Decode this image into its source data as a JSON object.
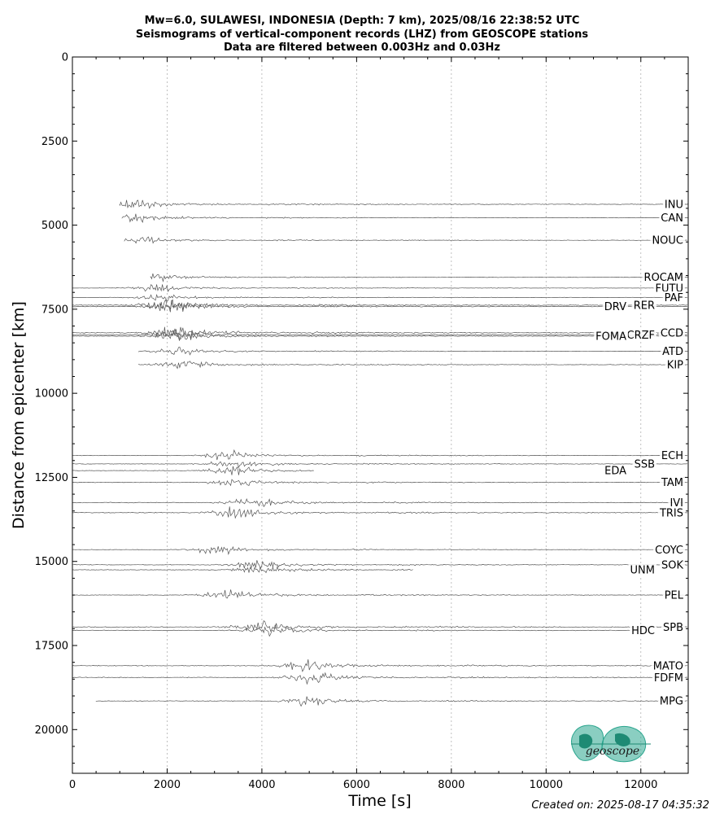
{
  "title": {
    "line1": "Mw=6.0, SULAWESI, INDONESIA (Depth: 7 km), 2025/08/16 22:38:52 UTC",
    "line2": "Seismograms of vertical-component records (LHZ) from GEOSCOPE stations",
    "line3": "Data are filtered between 0.003Hz and 0.03Hz"
  },
  "footer": {
    "created": "Created on: 2025-08-17 04:35:32"
  },
  "logo": {
    "text": "geoscope",
    "color": "#2aa58e"
  },
  "chart_data": {
    "type": "seismogram_record_section",
    "xlabel": "Time [s]",
    "ylabel": "Distance from epicenter [km]",
    "xlim": [
      0,
      13000
    ],
    "ylim": [
      21300,
      0
    ],
    "xticks": [
      0,
      2000,
      4000,
      6000,
      8000,
      10000,
      12000
    ],
    "yticks": [
      0,
      2500,
      5000,
      7500,
      10000,
      12500,
      15000,
      17500,
      20000
    ],
    "grid": "vertical dotted",
    "trace_color": "#555555",
    "stations": [
      {
        "name": "INU",
        "distance_km": 4380,
        "onset_s": 1000,
        "peak_s": 1300,
        "end_s": 13000,
        "amp": 1.0
      },
      {
        "name": "CAN",
        "distance_km": 4780,
        "onset_s": 1050,
        "peak_s": 1350,
        "end_s": 13000,
        "amp": 0.8
      },
      {
        "name": "NOUC",
        "distance_km": 5450,
        "onset_s": 1100,
        "peak_s": 1450,
        "end_s": 13000,
        "amp": 0.7
      },
      {
        "name": "ROCAM",
        "distance_km": 6550,
        "onset_s": 1650,
        "peak_s": 1750,
        "end_s": 13000,
        "amp": 0.7
      },
      {
        "name": "FUTU",
        "distance_km": 6870,
        "onset_s": 0,
        "peak_s": 1800,
        "end_s": 13000,
        "amp": 0.6
      },
      {
        "name": "PAF",
        "distance_km": 7150,
        "onset_s": 0,
        "peak_s": 1900,
        "end_s": 13000,
        "amp": 0.6
      },
      {
        "name": "RER",
        "distance_km": 7380,
        "onset_s": 0,
        "peak_s": 2000,
        "end_s": 13000,
        "amp": 1.2
      },
      {
        "name": "DRV",
        "distance_km": 7420,
        "onset_s": 0,
        "peak_s": 2100,
        "end_s": 13000,
        "amp": 1.0
      },
      {
        "name": "CCD",
        "distance_km": 8200,
        "onset_s": 0,
        "peak_s": 2200,
        "end_s": 13000,
        "amp": 1.2
      },
      {
        "name": "CRZF",
        "distance_km": 8260,
        "onset_s": 0,
        "peak_s": 2250,
        "end_s": 13000,
        "amp": 0.9
      },
      {
        "name": "FOMA",
        "distance_km": 8300,
        "onset_s": 0,
        "peak_s": 2200,
        "end_s": 13000,
        "amp": 0.8
      },
      {
        "name": "ATD",
        "distance_km": 8750,
        "onset_s": 1400,
        "peak_s": 2300,
        "end_s": 13000,
        "amp": 0.7
      },
      {
        "name": "KIP",
        "distance_km": 9150,
        "onset_s": 1400,
        "peak_s": 2350,
        "end_s": 13000,
        "amp": 0.9
      },
      {
        "name": "ECH",
        "distance_km": 11850,
        "onset_s": 0,
        "peak_s": 3300,
        "end_s": 13000,
        "amp": 0.8
      },
      {
        "name": "SSB",
        "distance_km": 12100,
        "onset_s": 0,
        "peak_s": 3350,
        "end_s": 13000,
        "amp": 0.8
      },
      {
        "name": "EDA",
        "distance_km": 12300,
        "onset_s": 0,
        "peak_s": 3400,
        "end_s": 5100,
        "amp": 0.8
      },
      {
        "name": "TAM",
        "distance_km": 12650,
        "onset_s": 0,
        "peak_s": 3450,
        "end_s": 13000,
        "amp": 0.7
      },
      {
        "name": "IVI",
        "distance_km": 13250,
        "onset_s": 0,
        "peak_s": 3800,
        "end_s": 13000,
        "amp": 0.9
      },
      {
        "name": "TRIS",
        "distance_km": 13550,
        "onset_s": 0,
        "peak_s": 3500,
        "end_s": 13000,
        "amp": 1.0
      },
      {
        "name": "COYC",
        "distance_km": 14650,
        "onset_s": 0,
        "peak_s": 3100,
        "end_s": 13000,
        "amp": 0.8
      },
      {
        "name": "SOK",
        "distance_km": 15100,
        "onset_s": 0,
        "peak_s": 3900,
        "end_s": 13000,
        "amp": 0.8
      },
      {
        "name": "UNM",
        "distance_km": 15250,
        "onset_s": 0,
        "peak_s": 4000,
        "end_s": 7200,
        "amp": 0.8
      },
      {
        "name": "PEL",
        "distance_km": 16000,
        "onset_s": 0,
        "peak_s": 3300,
        "end_s": 13000,
        "amp": 0.9
      },
      {
        "name": "SPB",
        "distance_km": 16950,
        "onset_s": 0,
        "peak_s": 4000,
        "end_s": 13000,
        "amp": 1.1
      },
      {
        "name": "HDC",
        "distance_km": 17050,
        "onset_s": 0,
        "peak_s": 4200,
        "end_s": 11800,
        "amp": 0.8
      },
      {
        "name": "MATO",
        "distance_km": 18100,
        "onset_s": 0,
        "peak_s": 4900,
        "end_s": 13000,
        "amp": 1.0
      },
      {
        "name": "FDFM",
        "distance_km": 18450,
        "onset_s": 0,
        "peak_s": 5100,
        "end_s": 13000,
        "amp": 1.0
      },
      {
        "name": "MPG",
        "distance_km": 19150,
        "onset_s": 500,
        "peak_s": 5000,
        "end_s": 13000,
        "amp": 0.8
      }
    ]
  }
}
